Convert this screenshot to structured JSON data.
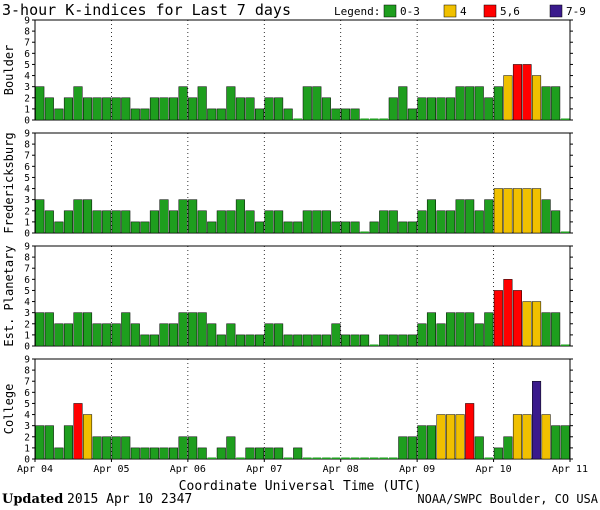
{
  "header": {
    "title": "3-hour K-indices for Last 7 days",
    "legend_label": "Legend:",
    "legend": [
      {
        "label": "0-3",
        "color": "#1e9e1e"
      },
      {
        "label": "4",
        "color": "#f0c000"
      },
      {
        "label": "5,6",
        "color": "#ff0000"
      },
      {
        "label": "7-9",
        "color": "#3a1a8c"
      }
    ]
  },
  "footer": {
    "updated_label": "Updated",
    "updated_value": "2015 Apr 10 2347",
    "credit": "NOAA/SWPC Boulder, CO USA"
  },
  "chart_data": {
    "type": "bar",
    "xlabel": "Coordinate Universal Time (UTC)",
    "x_ticks": [
      "Apr 04",
      "Apr 05",
      "Apr 06",
      "Apr 07",
      "Apr 08",
      "Apr 09",
      "Apr 10",
      "Apr 11"
    ],
    "ylim": [
      0,
      9
    ],
    "y_ticks": [
      0,
      1,
      2,
      3,
      4,
      5,
      6,
      7,
      8,
      9
    ],
    "grid": "dotted vertical at day boundaries",
    "color_scale": [
      {
        "range": "0-3",
        "color": "#1e9e1e"
      },
      {
        "range": "4",
        "color": "#f0c000"
      },
      {
        "range": "5,6",
        "color": "#ff0000"
      },
      {
        "range": "7-9",
        "color": "#3a1a8c"
      }
    ],
    "panels": [
      {
        "station": "Boulder",
        "values": [
          3,
          2,
          1,
          2,
          3,
          2,
          2,
          2,
          2,
          2,
          1,
          1,
          2,
          2,
          2,
          3,
          2,
          3,
          1,
          1,
          3,
          2,
          2,
          1,
          2,
          2,
          1,
          0,
          3,
          3,
          2,
          1,
          1,
          1,
          0,
          0,
          0,
          2,
          3,
          1,
          2,
          2,
          2,
          2,
          3,
          3,
          3,
          2,
          3,
          4,
          5,
          5,
          4,
          3,
          3,
          0
        ]
      },
      {
        "station": "Fredericksburg",
        "values": [
          3,
          2,
          1,
          2,
          3,
          3,
          2,
          2,
          2,
          2,
          1,
          1,
          2,
          3,
          2,
          3,
          3,
          2,
          1,
          2,
          2,
          3,
          2,
          1,
          2,
          2,
          1,
          1,
          2,
          2,
          2,
          1,
          1,
          1,
          0,
          1,
          2,
          2,
          1,
          1,
          2,
          3,
          2,
          2,
          3,
          3,
          2,
          3,
          4,
          4,
          4,
          4,
          4,
          3,
          2,
          0
        ]
      },
      {
        "station": "Est. Planetary",
        "values": [
          3,
          3,
          2,
          2,
          3,
          3,
          2,
          2,
          2,
          3,
          2,
          1,
          1,
          2,
          2,
          3,
          3,
          3,
          2,
          1,
          2,
          1,
          1,
          1,
          2,
          2,
          1,
          1,
          1,
          1,
          1,
          2,
          1,
          1,
          1,
          0,
          1,
          1,
          1,
          1,
          2,
          3,
          2,
          3,
          3,
          3,
          2,
          3,
          5,
          6,
          5,
          4,
          4,
          3,
          3,
          0
        ]
      },
      {
        "station": "College",
        "values": [
          3,
          3,
          1,
          3,
          5,
          4,
          2,
          2,
          2,
          2,
          1,
          1,
          1,
          1,
          1,
          2,
          2,
          1,
          0,
          1,
          2,
          0,
          1,
          1,
          1,
          1,
          0,
          1,
          0,
          0,
          0,
          0,
          0,
          0,
          0,
          0,
          0,
          0,
          2,
          2,
          3,
          3,
          4,
          4,
          4,
          5,
          2,
          0,
          1,
          2,
          4,
          4,
          7,
          4,
          3,
          3,
          2,
          0
        ]
      }
    ]
  }
}
